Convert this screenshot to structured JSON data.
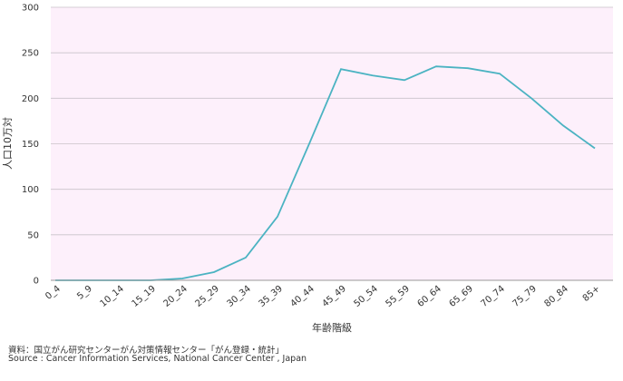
{
  "chart_data": {
    "type": "line",
    "xlabel": "年齢階級",
    "ylabel": "人口10万対",
    "ylim": [
      0,
      300
    ],
    "yticks": [
      0,
      50,
      100,
      150,
      200,
      250,
      300
    ],
    "categories": [
      "0_4",
      "5_9",
      "10_14",
      "15_19",
      "20_24",
      "25_29",
      "30_34",
      "35_39",
      "40_44",
      "45_49",
      "50_54",
      "55_59",
      "60_64",
      "65_69",
      "70_74",
      "75_79",
      "80_84",
      "85+"
    ],
    "series": [
      {
        "values": [
          0,
          0,
          0,
          0,
          2,
          9,
          25,
          70,
          150,
          232,
          225,
          220,
          235,
          233,
          227,
          200,
          170,
          145
        ]
      }
    ],
    "grid": true,
    "legend": "none"
  },
  "colors": {
    "plot_background": "#fdf0fb",
    "line": "#4bb3c2",
    "grid": "#c9c2c9",
    "axis": "#999999"
  },
  "footnotes": {
    "source_ja": "資料：国立がん研究センターがん対策情報センター「がん登録・統計」",
    "source_en": "Source : Cancer Information Services, National Cancer Center , Japan"
  }
}
